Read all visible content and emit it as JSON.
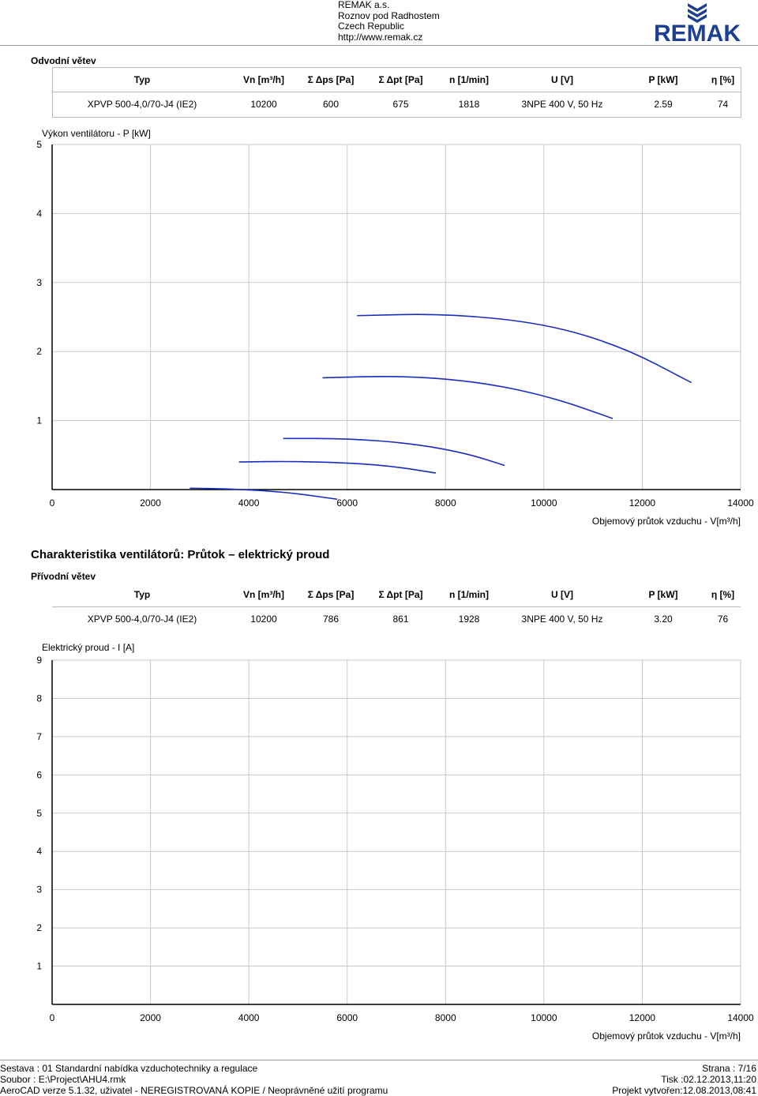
{
  "company": {
    "name": "REMAK a.s.",
    "city": "Roznov pod Radhostem",
    "country": "Czech Republic",
    "url": "http://www.remak.cz",
    "logo_text": "REMAK",
    "brand_color": "#1c3f94"
  },
  "section1": {
    "label": "Odvodní větev",
    "table": {
      "headers": [
        "Typ",
        "Vn [m³/h]",
        "Σ Δps [Pa]",
        "Σ Δpt [Pa]",
        "n [1/min]",
        "U [V]",
        "P [kW]",
        "η [%]"
      ],
      "row": [
        "XPVP 500-4,0/70-J4 (IE2)",
        "10200",
        "600",
        "675",
        "1818",
        "3NPE 400 V, 50 Hz",
        "2.59",
        "74"
      ]
    },
    "chart_caption": "Výkon ventilátoru - P [kW]"
  },
  "section2": {
    "title": "Charakteristika ventilátorů: Průtok – elektrický proud",
    "label": "Přívodní větev",
    "table": {
      "headers": [
        "Typ",
        "Vn [m³/h]",
        "Σ Δps [Pa]",
        "Σ Δpt [Pa]",
        "n [1/min]",
        "U [V]",
        "P [kW]",
        "η [%]"
      ],
      "row": [
        "XPVP 500-4,0/70-J4 (IE2)",
        "10200",
        "786",
        "861",
        "1928",
        "3NPE 400 V, 50 Hz",
        "3.20",
        "76"
      ]
    },
    "chart_caption": "Elektrický proud - I [A]"
  },
  "chart_data": [
    {
      "type": "line",
      "title": "Výkon ventilátoru - P [kW]",
      "ylabel": "Výkon ventilátoru - P [kW]",
      "xlabel": "Objemový průtok vzduchu - V[m³/h]",
      "xlim": [
        0,
        14000
      ],
      "ylim": [
        0,
        5
      ],
      "xticks": [
        "0",
        "2000",
        "4000",
        "6000",
        "8000",
        "10000",
        "12000",
        "14000"
      ],
      "yticks": [
        "1",
        "2",
        "3",
        "4",
        "5"
      ],
      "grid": true,
      "series": [
        {
          "x": [
            2800,
            3600,
            4400,
            5000,
            5800
          ],
          "y": [
            0.02,
            0.01,
            -0.02,
            -0.06,
            -0.14
          ]
        },
        {
          "x": [
            3800,
            5000,
            6200,
            7000,
            7800
          ],
          "y": [
            0.4,
            0.41,
            0.38,
            0.33,
            0.24
          ]
        },
        {
          "x": [
            4700,
            6000,
            7300,
            8400,
            9200
          ],
          "y": [
            0.74,
            0.74,
            0.67,
            0.53,
            0.35
          ]
        },
        {
          "x": [
            5500,
            7200,
            8800,
            10200,
            11400
          ],
          "y": [
            1.62,
            1.65,
            1.55,
            1.33,
            1.03
          ]
        },
        {
          "x": [
            6200,
            8000,
            10000,
            11600,
            13000
          ],
          "y": [
            2.52,
            2.55,
            2.41,
            2.07,
            1.55
          ]
        }
      ]
    },
    {
      "type": "line",
      "title": "Elektrický proud - I [A]",
      "ylabel": "Elektrický proud - I [A]",
      "xlabel": "Objemový průtok vzduchu - V[m³/h]",
      "xlim": [
        0,
        14000
      ],
      "ylim": [
        0,
        9
      ],
      "xticks": [
        "0",
        "2000",
        "4000",
        "6000",
        "8000",
        "10000",
        "12000",
        "14000"
      ],
      "yticks": [
        "1",
        "2",
        "3",
        "4",
        "5",
        "6",
        "7",
        "8",
        "9"
      ],
      "grid": true,
      "series": []
    }
  ],
  "footer": {
    "left": [
      "Sestava : 01 Standardní nabídka vzduchotechniky a regulace",
      "Soubor : E:\\Project\\AHU4.rmk",
      "AeroCAD verze 5.1.32, uživatel - NEREGISTROVANÁ KOPIE / Neoprávněné užití programu"
    ],
    "right": [
      "Strana : 7/16",
      "Tisk :02.12.2013,11:20",
      "Projekt vytvořen:12.08.2013,08:41"
    ]
  }
}
